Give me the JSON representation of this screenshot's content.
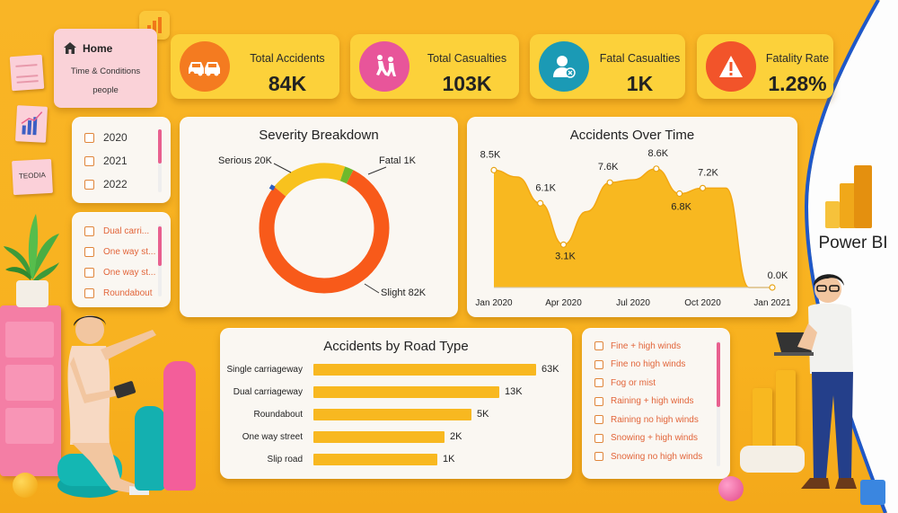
{
  "nav": {
    "home_label": "Home",
    "item_time": "Time & Conditions",
    "item_people": "people"
  },
  "sticky_note_text": "TEODIA",
  "kpis": [
    {
      "label": "Total Accidents",
      "value": "84K",
      "icon": "cars-icon",
      "color": "#f47b20"
    },
    {
      "label": "Total Casualties",
      "value": "103K",
      "icon": "people-running-icon",
      "color": "#e8559a"
    },
    {
      "label": "Fatal Casualties",
      "value": "1K",
      "icon": "person-badge-icon",
      "color": "#1b9ab5"
    },
    {
      "label": "Fatality Rate",
      "value": "1.28%",
      "icon": "warning-icon",
      "color": "#f2542a"
    }
  ],
  "year_slicer": {
    "items": [
      "2020",
      "2021",
      "2022"
    ]
  },
  "road_slicer": {
    "items": [
      "Dual carri...",
      "One way st...",
      "One way st...",
      "Roundabout"
    ]
  },
  "severity": {
    "title": "Severity Breakdown",
    "labels": {
      "serious": "Serious 20K",
      "fatal": "Fatal 1K",
      "slight": "Slight 82K"
    }
  },
  "over_time": {
    "title": "Accidents Over Time"
  },
  "road_type": {
    "title": "Accidents by Road Type"
  },
  "weather_slicer": {
    "items": [
      "Fine + high winds",
      "Fine no high winds",
      "Fog or mist",
      "Raining + high winds",
      "Raining no high winds",
      "Snowing + high winds",
      "Snowing no high winds"
    ]
  },
  "brand": {
    "name": "Power BI"
  },
  "colors": {
    "background": "#f8b21f",
    "accent_yellow": "#f8b820",
    "accent_orange": "#f85a1a",
    "card": "#faf7f2",
    "kpi_card": "#fcd13a"
  },
  "chart_data": [
    {
      "type": "pie",
      "title": "Severity Breakdown",
      "categories": [
        "Slight",
        "Serious",
        "Fatal"
      ],
      "values": [
        82,
        20,
        1
      ],
      "labels": [
        "Slight 82K",
        "Serious 20K",
        "Fatal 1K"
      ],
      "colors": [
        "#f85a1a",
        "#f8c21e",
        "#6fb92c"
      ],
      "donut": true
    },
    {
      "type": "area",
      "title": "Accidents Over Time",
      "x": [
        "Jan 2020",
        "Feb 2020",
        "Mar 2020",
        "Apr 2020",
        "May 2020",
        "Jun 2020",
        "Jul 2020",
        "Aug 2020",
        "Sep 2020",
        "Oct 2020",
        "Nov 2020",
        "Dec 2020",
        "Jan 2021"
      ],
      "values": [
        8.5,
        8.0,
        6.1,
        3.1,
        5.5,
        7.6,
        7.8,
        8.6,
        6.8,
        7.2,
        7.2,
        0.0,
        0.0
      ],
      "point_labels": [
        "8.5K",
        "",
        "6.1K",
        "3.1K",
        "",
        "7.6K",
        "",
        "8.6K",
        "6.8K",
        "7.2K",
        "",
        "",
        "0.0K"
      ],
      "x_tick_labels": [
        "Jan 2020",
        "Apr 2020",
        "Jul 2020",
        "Oct 2020",
        "Jan 2021"
      ],
      "x_tick_index": [
        0,
        3,
        6,
        9,
        12
      ],
      "ylim": [
        0,
        9.5
      ],
      "color": "#f8b820"
    },
    {
      "type": "bar",
      "orientation": "horizontal",
      "title": "Accidents by Road Type",
      "categories": [
        "Single carriageway",
        "Dual carriageway",
        "Roundabout",
        "One way street",
        "Slip road"
      ],
      "values": [
        63,
        13,
        5,
        2,
        1
      ],
      "value_labels": [
        "63K",
        "13K",
        "5K",
        "2K",
        "1K"
      ],
      "color": "#f8b820"
    }
  ]
}
